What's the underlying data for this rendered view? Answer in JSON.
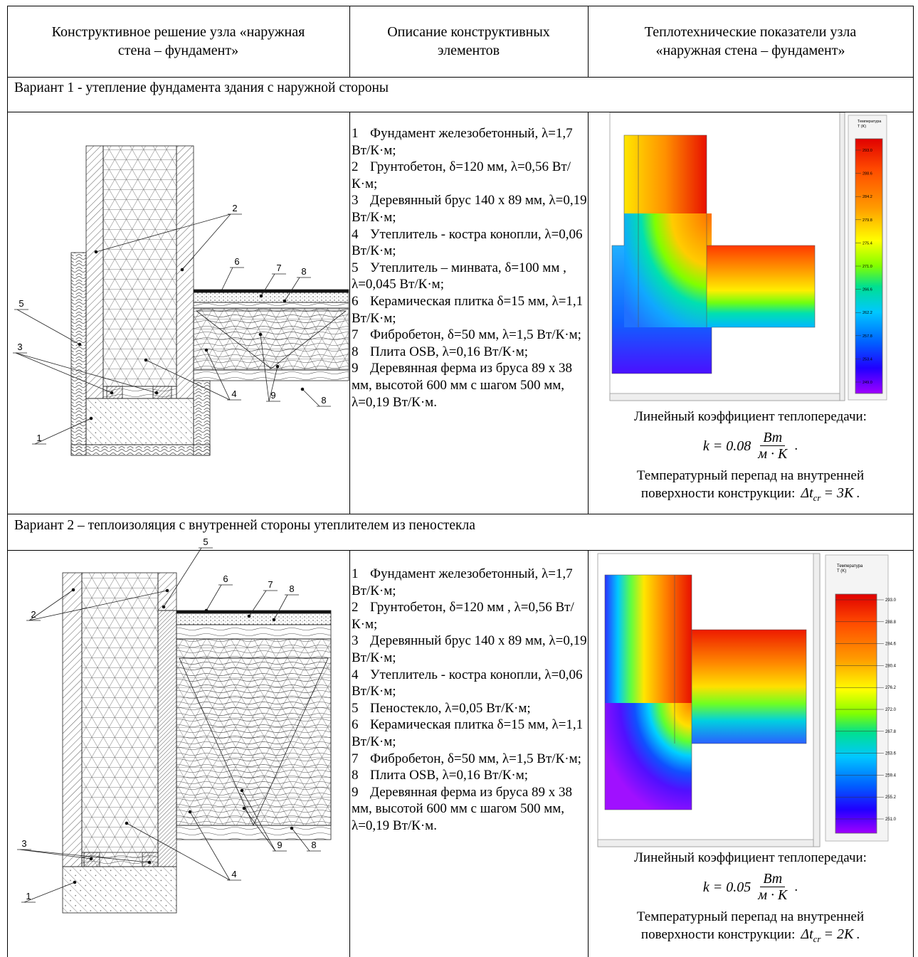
{
  "table": {
    "header": [
      "Конструктивное решение узла «наружная стена – фундамент»",
      "Описание конструктивных элементов",
      "Теплотехнические показатели узла «наружная стена – фундамент»"
    ],
    "variants": [
      {
        "title": "Вариант 1 - утепление фундамента здания с наружной стороны",
        "drawing_labels": [
          "2",
          "6",
          "7",
          "8",
          "5",
          "3",
          "9",
          "8",
          "4",
          "1"
        ],
        "elements": [
          {
            "num": "1",
            "text": "Фундамент железобетонный, λ=1,7 Вт/К·м;"
          },
          {
            "num": "2",
            "text": "Грунтобетон, δ=120 мм, λ=0,56 Вт/К·м;"
          },
          {
            "num": "3",
            "text": "Деревянный брус 140 х 89 мм, λ=0,19 Вт/К·м;"
          },
          {
            "num": "4",
            "text": "Утеплитель - костра конопли, λ=0,06 Вт/К·м;"
          },
          {
            "num": "5",
            "text": "Утеплитель – минвата, δ=100 мм , λ=0,045 Вт/К·м;"
          },
          {
            "num": "6",
            "text": "Керамическая плитка δ=15 мм, λ=1,1 Вт/К·м;"
          },
          {
            "num": "7",
            "text": "Фибробетон, δ=50 мм, λ=1,5 Вт/К·м;"
          },
          {
            "num": "8",
            "text": "Плита OSB, λ=0,16 Вт/К·м;"
          },
          {
            "num": "9",
            "text": "Деревянная ферма из бруса 89 х 38 мм, высотой 600 мм с шагом 500 мм, λ=0,19 Вт/К·м."
          }
        ],
        "legend_title": "Температура",
        "legend_unit": "T (K)",
        "legend_ticks": [
          "293.0",
          "288.6",
          "284.2",
          "279.8",
          "275.4",
          "271.0",
          "266.6",
          "262.2",
          "257.8",
          "253.4",
          "249.0"
        ],
        "coef_label": "Линейный коэффициент теплопередачи:",
        "coef_formula": {
          "lhs": "k = 0.08",
          "num": "Вт",
          "den": "м · К",
          "tail": "."
        },
        "delta_label": "Температурный перепад на внутренней поверхности конструкции:",
        "delta_formula": {
          "lhs": "Δt",
          "sub": "cr",
          "rhs": "= 3K",
          "tail": "."
        }
      },
      {
        "title": "Вариант 2 – теплоизоляция с внутренней стороны утеплителем из пеностекла",
        "drawing_labels": [
          "5",
          "6",
          "7",
          "8",
          "2",
          "3",
          "9",
          "8",
          "4",
          "1"
        ],
        "elements": [
          {
            "num": "1",
            "text": "Фундамент железобетонный, λ=1,7 Вт/К·м;"
          },
          {
            "num": "2",
            "text": "Грунтобетон, δ=120 мм , λ=0,56 Вт/К·м;"
          },
          {
            "num": "3",
            "text": "Деревянный брус 140 х 89 мм, λ=0,19 Вт/К·м;"
          },
          {
            "num": "4",
            "text": "Утеплитель - костра конопли, λ=0,06 Вт/К·м;"
          },
          {
            "num": "5",
            "text": "Пеностекло, λ=0,05 Вт/К·м;"
          },
          {
            "num": "6",
            "text": "Керамическая плитка δ=15 мм, λ=1,1 Вт/К·м;"
          },
          {
            "num": "7",
            "text": "Фибробетон, δ=50 мм, λ=1,5 Вт/К·м;"
          },
          {
            "num": "8",
            "text": "Плита OSB, λ=0,16 Вт/К·м;"
          },
          {
            "num": "9",
            "text": "Деревянная ферма из бруса 89 х 38 мм, высотой 600 мм с шагом 500 мм, λ=0,19 Вт/К·м."
          }
        ],
        "legend_title": "Температура",
        "legend_unit": "T (K)",
        "legend_ticks": [
          "293.0",
          "288.8",
          "284.6",
          "280.4",
          "276.2",
          "272.0",
          "267.8",
          "263.6",
          "259.4",
          "255.2",
          "251.0"
        ],
        "coef_label": "Линейный коэффициент теплопередачи:",
        "coef_formula": {
          "lhs": "k = 0.05",
          "num": "Вт",
          "den": "м · К",
          "tail": "."
        },
        "delta_label": "Температурный перепад на внутренней поверхности конструкции:",
        "delta_formula": {
          "lhs": "Δt",
          "sub": "cr",
          "rhs": "= 2K",
          "tail": "."
        }
      }
    ]
  }
}
